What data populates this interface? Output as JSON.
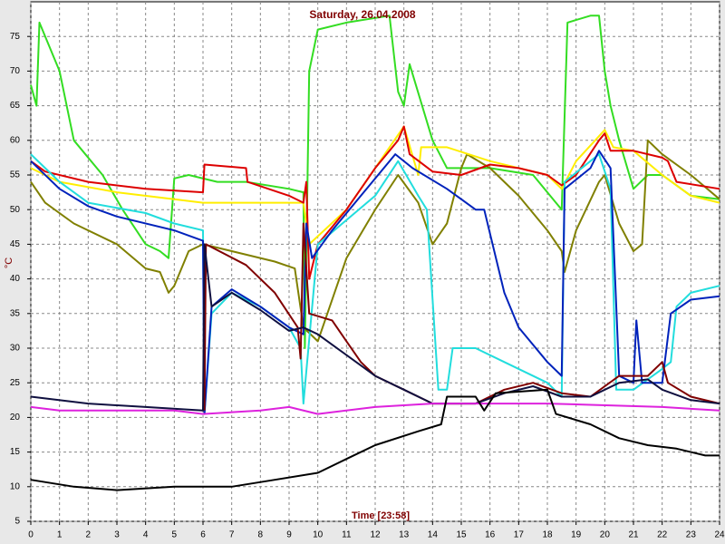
{
  "chart_data": {
    "type": "line",
    "title": "Saturday, 26.04.2008",
    "xlabel": "Time [23:58]",
    "ylabel": "°C",
    "xlim": [
      0,
      24
    ],
    "ylim": [
      5,
      80
    ],
    "xticks": [
      0,
      1,
      2,
      3,
      4,
      5,
      6,
      7,
      8,
      9,
      10,
      11,
      12,
      13,
      14,
      15,
      16,
      17,
      18,
      19,
      20,
      21,
      22,
      23,
      24
    ],
    "yticks": [
      5,
      10,
      15,
      20,
      25,
      30,
      35,
      40,
      45,
      50,
      55,
      60,
      65,
      70,
      75
    ],
    "grid": true,
    "series": [
      {
        "color": "#33dd22",
        "x": [
          0,
          0.2,
          0.3,
          1,
          1.5,
          2.5,
          3.2,
          4,
          4.5,
          4.8,
          5,
          5.5,
          6.5,
          7.5,
          9,
          9.5,
          9.55,
          9.7,
          10,
          11,
          12.5,
          12.8,
          13,
          13.2,
          14,
          14.5,
          15,
          16,
          17.5,
          18.3,
          18.5,
          18.7,
          19.5,
          19.8,
          20,
          20.2,
          20.5,
          21,
          21.5,
          22,
          23,
          24
        ],
        "values": [
          68,
          65,
          77,
          70,
          60,
          55,
          50,
          45,
          44,
          43,
          54.5,
          55,
          54,
          54,
          53,
          52.5,
          30,
          70,
          76,
          77,
          78,
          67,
          65,
          71,
          60,
          56,
          56,
          56,
          55,
          51,
          50,
          77,
          78,
          78,
          70,
          65,
          60,
          53,
          55,
          55,
          52,
          51.5
        ]
      },
      {
        "color": "#808000",
        "x": [
          0,
          0.5,
          1.5,
          3,
          4,
          4.5,
          4.8,
          5,
          5.5,
          6,
          7,
          8.5,
          9.2,
          9.5,
          10,
          11,
          12,
          12.8,
          13.5,
          14,
          14.5,
          15,
          15.2,
          16,
          17,
          18,
          18.5,
          18.6,
          19,
          19.8,
          20,
          20.5,
          21,
          21.3,
          21.5,
          22,
          23,
          24
        ],
        "values": [
          54,
          51,
          48,
          45,
          41.5,
          41,
          38,
          39,
          44,
          45,
          44,
          42.5,
          41.5,
          33,
          31,
          43,
          50,
          55,
          51,
          45,
          48,
          56,
          58,
          56,
          52,
          47,
          44,
          41,
          47,
          54,
          55,
          48,
          44,
          45,
          60,
          58,
          55,
          51.5
        ]
      },
      {
        "color": "#ffee00",
        "x": [
          0,
          1,
          3,
          5,
          6,
          9.5,
          9.7,
          11,
          12,
          13,
          13.5,
          13.6,
          14.5,
          16,
          18,
          18.5,
          19,
          20,
          20.3,
          21,
          22,
          23,
          24
        ],
        "values": [
          56,
          54,
          52.5,
          51.5,
          51,
          51,
          45,
          50,
          56,
          62,
          55,
          59,
          59,
          57,
          55,
          53,
          57,
          61.5,
          59,
          58.5,
          55,
          52,
          51
        ]
      },
      {
        "color": "#dd0000",
        "x": [
          0,
          0.5,
          2,
          4,
          6,
          6.05,
          7.5,
          7.55,
          9,
          9.5,
          9.6,
          9.7,
          10,
          11,
          12,
          12.8,
          13,
          13.2,
          14,
          15,
          16,
          17,
          18,
          18.5,
          19,
          19.8,
          20,
          20.2,
          21,
          22,
          22.2,
          22.5,
          24
        ],
        "values": [
          57,
          55.5,
          54,
          53,
          52.5,
          56.5,
          56,
          54,
          52,
          51,
          54,
          40,
          45,
          50,
          56,
          60,
          62,
          58,
          55.5,
          55,
          56.5,
          56,
          55,
          53.5,
          55,
          60,
          61,
          58.5,
          58.5,
          57.5,
          57,
          54,
          53
        ]
      },
      {
        "color": "#22dddd",
        "x": [
          0,
          1,
          2,
          4,
          5,
          6,
          6.05,
          6.3,
          7,
          8,
          9,
          9.4,
          9.5,
          10,
          12,
          12.8,
          13.5,
          13.8,
          14.2,
          14.5,
          14.7,
          15.5,
          16.5,
          18,
          18.5,
          18.6,
          19.5,
          19.8,
          20.2,
          20.4,
          21,
          22,
          22.3,
          22.5,
          23,
          24
        ],
        "values": [
          58,
          54,
          51,
          49.5,
          48,
          47,
          20.5,
          35,
          38,
          36,
          33,
          30,
          22,
          45,
          52,
          57,
          52,
          50,
          24,
          24,
          30,
          30,
          28,
          25,
          23,
          54,
          57,
          58,
          53,
          24,
          24,
          27,
          28,
          36,
          38,
          39
        ]
      },
      {
        "color": "#0022bb",
        "x": [
          0,
          1,
          2,
          3,
          5,
          6,
          6.05,
          6.3,
          7,
          8,
          9,
          9.5,
          9.6,
          9.8,
          10.5,
          11.5,
          12.7,
          13.3,
          14.5,
          15.5,
          15.8,
          16.5,
          17,
          18,
          18.5,
          18.6,
          19.5,
          19.8,
          20.2,
          20.5,
          21,
          21.1,
          21.3,
          22,
          22.3,
          23,
          24
        ],
        "values": [
          57,
          53,
          50.5,
          49,
          47,
          45.5,
          20.5,
          36,
          38.5,
          36,
          33,
          32,
          48,
          43,
          47,
          52,
          58,
          56,
          53,
          50,
          50,
          38,
          33,
          28,
          26,
          53,
          56,
          58.5,
          56,
          26,
          25,
          34,
          25,
          25,
          35,
          37,
          37.5
        ]
      },
      {
        "color": "#800000",
        "x": [
          6.05,
          6.1,
          7.5,
          8.5,
          9.3,
          9.4,
          9.5,
          9.7,
          10.5,
          11,
          11.5,
          12,
          13,
          14,
          15.5,
          16.5,
          17.5,
          18.5,
          19.5,
          20.5,
          21.5,
          22,
          22.2,
          23,
          24
        ],
        "values": [
          21,
          45,
          42,
          38,
          33,
          28.5,
          48,
          35,
          34,
          31,
          28,
          26,
          24,
          22,
          22,
          24,
          25,
          23.5,
          23,
          26,
          26,
          28,
          25,
          23,
          22
        ]
      },
      {
        "color": "#101040",
        "x": [
          0,
          2,
          4,
          6,
          6.05,
          6.3,
          7,
          8,
          9,
          9.5,
          10,
          11,
          12,
          13,
          14,
          15.5,
          16.5,
          17.5,
          18.5,
          19.5,
          20.5,
          21.5,
          22,
          23,
          24
        ],
        "values": [
          23,
          22,
          21.5,
          21,
          45,
          36,
          38,
          35.5,
          32.5,
          33,
          32,
          29,
          26,
          24,
          22,
          22,
          23.5,
          24.5,
          23,
          23,
          25,
          25.5,
          24,
          22.5,
          22
        ]
      },
      {
        "color": "#dd22dd",
        "x": [
          0,
          1,
          5,
          6,
          8,
          9,
          10,
          12,
          14,
          18,
          22,
          24
        ],
        "values": [
          21.5,
          21,
          21,
          20.5,
          21,
          21.5,
          20.5,
          21.5,
          22,
          22,
          21.5,
          21
        ]
      },
      {
        "color": "#000000",
        "x": [
          0,
          1.5,
          3,
          5,
          7,
          8.5,
          10,
          11,
          12,
          13.5,
          14.3,
          14.5,
          15.5,
          15.8,
          16.2,
          18,
          18.3,
          19.5,
          20.5,
          21.5,
          22.5,
          23.5,
          24
        ],
        "values": [
          11,
          10,
          9.5,
          10,
          10,
          11,
          12,
          14,
          16,
          18,
          19,
          23,
          23,
          21,
          23.5,
          24,
          20.5,
          19,
          17,
          16,
          15.5,
          14.5,
          14.5
        ]
      }
    ]
  }
}
